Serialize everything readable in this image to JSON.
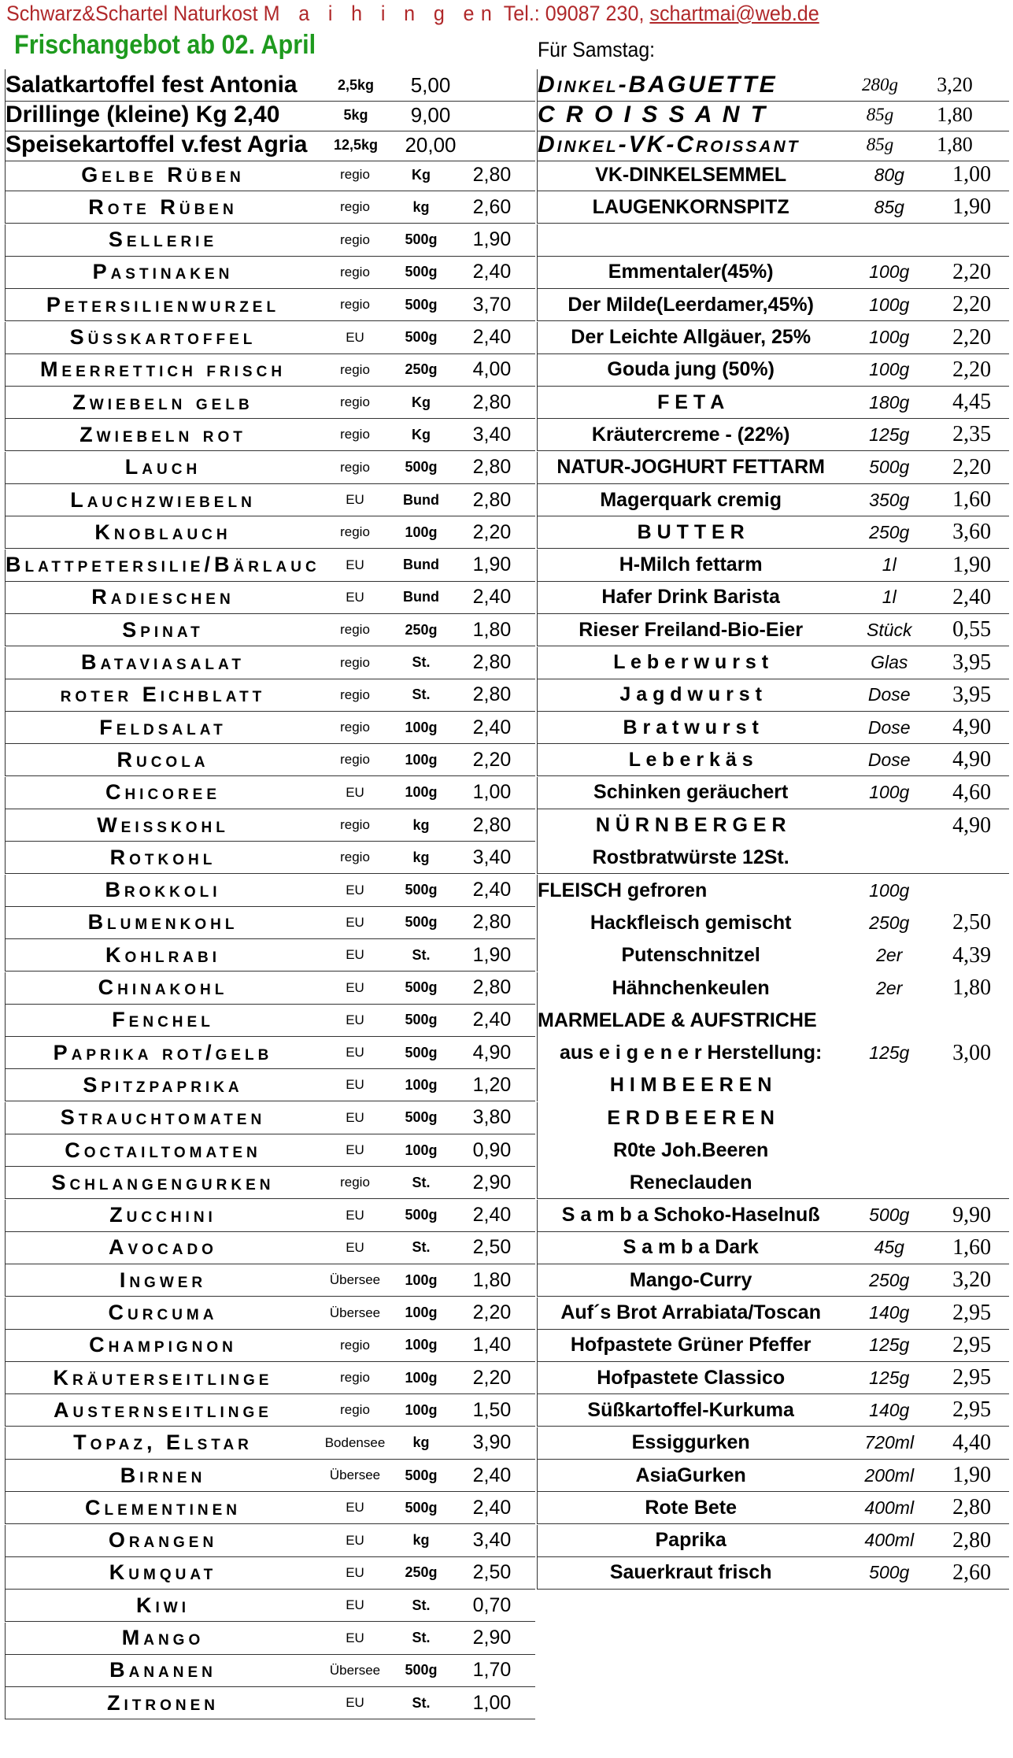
{
  "header": {
    "shop": "Schwarz&Schartel Naturkost",
    "town": "M a i h i n g en",
    "phone": "Tel.: 09087 230,",
    "email": "schartmai@web.de"
  },
  "title": "Frischangebot ab 02. April",
  "saturday_label": "Für Samstag:",
  "potatoes": [
    {
      "name": "Salatkartoffel fest Antonia",
      "unit": "2,5kg",
      "price": "5,00"
    },
    {
      "name": "Drillinge (kleine)  Kg 2,40",
      "unit": "5kg",
      "price": "9,00"
    },
    {
      "name": "Speisekartoffel v.fest Agria",
      "unit": "12,5kg",
      "price": "20,00"
    }
  ],
  "bakery": [
    {
      "name": "Dinkel-BAGUETTE",
      "unit": "280g",
      "price": "3,20"
    },
    {
      "name": "C R O I S S A N T",
      "unit": "85g",
      "price": "1,80"
    },
    {
      "name": "Dinkel-VK-Croissant",
      "unit": "85g",
      "price": "1,80"
    }
  ],
  "produce": [
    {
      "name": "Gelbe Rüben",
      "origin": "regio",
      "unit": "Kg",
      "price": "2,80"
    },
    {
      "name": "Rote Rüben",
      "origin": "regio",
      "unit": "kg",
      "price": "2,60"
    },
    {
      "name": "Sellerie",
      "origin": "regio",
      "unit": "500g",
      "price": "1,90"
    },
    {
      "name": "Pastinaken",
      "origin": "regio",
      "unit": "500g",
      "price": "2,40"
    },
    {
      "name": "Petersilienwurzel",
      "origin": "regio",
      "unit": "500g",
      "price": "3,70"
    },
    {
      "name": "Süsskartoffel",
      "origin": "EU",
      "unit": "500g",
      "price": "2,40"
    },
    {
      "name": "Meerrettich frisch",
      "origin": "regio",
      "unit": "250g",
      "price": "4,00"
    },
    {
      "name": "Zwiebeln gelb",
      "origin": "regio",
      "unit": "Kg",
      "price": "2,80"
    },
    {
      "name": "Zwiebeln  rot",
      "origin": "regio",
      "unit": "Kg",
      "price": "3,40"
    },
    {
      "name": "Lauch",
      "origin": "regio",
      "unit": "500g",
      "price": "2,80"
    },
    {
      "name": "Lauchzwiebeln",
      "origin": "EU",
      "unit": "Bund",
      "price": "2,80"
    },
    {
      "name": "Knoblauch",
      "origin": "regio",
      "unit": "100g",
      "price": "2,20"
    },
    {
      "name": "Blattpetersilie/Bärlauch",
      "origin": "EU",
      "unit": "Bund",
      "price": "1,90"
    },
    {
      "name": "Radieschen",
      "origin": "EU",
      "unit": "Bund",
      "price": "2,40"
    },
    {
      "name": "Spinat",
      "origin": "regio",
      "unit": "250g",
      "price": "1,80"
    },
    {
      "name": "Bataviasalat",
      "origin": "regio",
      "unit": "St.",
      "price": "2,80"
    },
    {
      "name": "roter Eichblatt",
      "origin": "regio",
      "unit": "St.",
      "price": "2,80"
    },
    {
      "name": "Feldsalat",
      "origin": "regio",
      "unit": "100g",
      "price": "2,40"
    },
    {
      "name": "Rucola",
      "origin": "regio",
      "unit": "100g",
      "price": "2,20"
    },
    {
      "name": "Chicoree",
      "origin": "EU",
      "unit": "100g",
      "price": "1,00"
    },
    {
      "name": "Weisskohl",
      "origin": "regio",
      "unit": "kg",
      "price": "2,80"
    },
    {
      "name": "Rotkohl",
      "origin": "regio",
      "unit": "kg",
      "price": "3,40"
    },
    {
      "name": "Brokkoli",
      "origin": "EU",
      "unit": "500g",
      "price": "2,40"
    },
    {
      "name": "Blumenkohl",
      "origin": "EU",
      "unit": "500g",
      "price": "2,80"
    },
    {
      "name": "Kohlrabi",
      "origin": "EU",
      "unit": "St.",
      "price": "1,90"
    },
    {
      "name": "Chinakohl",
      "origin": "EU",
      "unit": "500g",
      "price": "2,80"
    },
    {
      "name": "Fenchel",
      "origin": "EU",
      "unit": "500g",
      "price": "2,40"
    },
    {
      "name": "Paprika rot/gelb",
      "origin": "EU",
      "unit": "500g",
      "price": "4,90"
    },
    {
      "name": "Spitzpaprika",
      "origin": "EU",
      "unit": "100g",
      "price": "1,20"
    },
    {
      "name": "Strauchtomaten",
      "origin": "EU",
      "unit": "500g",
      "price": "3,80"
    },
    {
      "name": "Coctailtomaten",
      "origin": "EU",
      "unit": "100g",
      "price": "0,90"
    },
    {
      "name": "Schlangengurken",
      "origin": "regio",
      "unit": "St.",
      "price": "2,90"
    },
    {
      "name": "Zucchini",
      "origin": "EU",
      "unit": "500g",
      "price": "2,40"
    },
    {
      "name": "Avocado",
      "origin": "EU",
      "unit": "St.",
      "price": "2,50"
    },
    {
      "name": "Ingwer",
      "origin": "Übersee",
      "unit": "100g",
      "price": "1,80"
    },
    {
      "name": "Curcuma",
      "origin": "Übersee",
      "unit": "100g",
      "price": "2,20"
    },
    {
      "name": "Champignon",
      "origin": "regio",
      "unit": "100g",
      "price": "1,40"
    },
    {
      "name": "Kräuterseitlinge",
      "origin": "regio",
      "unit": "100g",
      "price": "2,20"
    },
    {
      "name": "Austernseitlinge",
      "origin": "regio",
      "unit": "100g",
      "price": "1,50"
    },
    {
      "name": "Topaz, Elstar",
      "origin": "Bodensee",
      "unit": "kg",
      "price": "3,90"
    },
    {
      "name": "Birnen",
      "origin": "Übersee",
      "unit": "500g",
      "price": "2,40"
    },
    {
      "name": "Clementinen",
      "origin": "EU",
      "unit": "500g",
      "price": "2,40"
    },
    {
      "name": "Orangen",
      "origin": "EU",
      "unit": "kg",
      "price": "3,40"
    },
    {
      "name": "Kumquat",
      "origin": "EU",
      "unit": "250g",
      "price": "2,50"
    },
    {
      "name": "Kiwi",
      "origin": "EU",
      "unit": "St.",
      "price": "0,70"
    },
    {
      "name": "Mango",
      "origin": "EU",
      "unit": "St.",
      "price": "2,90"
    },
    {
      "name": "Bananen",
      "origin": "Übersee",
      "unit": "500g",
      "price": "1,70"
    },
    {
      "name": "Zitronen",
      "origin": "EU",
      "unit": "St.",
      "price": "1,00"
    }
  ],
  "saturday_items": [
    {
      "name": "VK-DINKELSEMMEL",
      "unit": "80g",
      "price": "1,00"
    },
    {
      "name": "LAUGENKORNSPITZ",
      "unit": "85g",
      "price": "1,90"
    },
    {
      "name": "",
      "unit": "",
      "price": ""
    },
    {
      "name": "Emmentaler(45%)",
      "unit": "100g",
      "price": "2,20"
    },
    {
      "name": "Der Milde(Leerdamer,45%)",
      "unit": "100g",
      "price": "2,20"
    },
    {
      "name": "Der Leichte Allgäuer,  25%",
      "unit": "100g",
      "price": "2,20"
    },
    {
      "name": "Gouda jung (50%)",
      "unit": "100g",
      "price": "2,20"
    },
    {
      "name": "F E T A",
      "unit": "180g",
      "price": "4,45"
    },
    {
      "name": "Kräutercreme - (22%)",
      "unit": "125g",
      "price": "2,35"
    },
    {
      "name": "NATUR-JOGHURT FETTARM",
      "unit": "500g",
      "price": "2,20"
    },
    {
      "name": "Magerquark cremig",
      "unit": "350g",
      "price": "1,60"
    },
    {
      "name": "B U T T E R",
      "unit": "250g",
      "price": "3,60"
    },
    {
      "name": "H-Milch fettarm",
      "unit": "1l",
      "price": "1,90"
    },
    {
      "name": "Hafer Drink Barista",
      "unit": "1l",
      "price": "2,40"
    },
    {
      "name": "Rieser Freiland-Bio-Eier",
      "unit": "Stück",
      "price": "0,55"
    },
    {
      "name": "L e b e r w u r s t",
      "unit": "Glas",
      "price": "3,95"
    },
    {
      "name": "J a g d w u r s t",
      "unit": "Dose",
      "price": "3,95"
    },
    {
      "name": "B r a t w u r s t",
      "unit": "Dose",
      "price": "4,90"
    },
    {
      "name": "L e b e r k ä s",
      "unit": "Dose",
      "price": "4,90"
    },
    {
      "name": "Schinken geräuchert",
      "unit": "100g",
      "price": "4,60"
    },
    {
      "name": "N Ü R N B E R G E R",
      "unit": "",
      "price": "4,90"
    },
    {
      "name": "Rostbratwürste 12St.",
      "unit": "",
      "price": ""
    },
    {
      "name": "FLEISCH gefroren",
      "unit": "100g",
      "price": ""
    },
    {
      "name": "Hackfleisch gemischt",
      "unit": "250g",
      "price": "2,50"
    },
    {
      "name": "Putenschnitzel",
      "unit": "2er",
      "price": "4,39"
    },
    {
      "name": "Hähnchenkeulen",
      "unit": "2er",
      "price": "1,80"
    },
    {
      "name": "MARMELADE & AUFSTRICHE",
      "unit": "",
      "price": ""
    },
    {
      "name": "aus e i g e n e r  Herstellung:",
      "unit": "125g",
      "price": "3,00"
    },
    {
      "name": "H I M B E E R E N",
      "unit": "",
      "price": ""
    },
    {
      "name": "E R D B E E R E N",
      "unit": "",
      "price": ""
    },
    {
      "name": "R0te Joh.Beeren",
      "unit": "",
      "price": ""
    },
    {
      "name": "Reneclauden",
      "unit": "",
      "price": ""
    },
    {
      "name": "S a m b a  Schoko-Haselnuß",
      "unit": "500g",
      "price": "9,90"
    },
    {
      "name": "S a m b a  Dark",
      "unit": "45g",
      "price": "1,60"
    },
    {
      "name": "Mango-Curry",
      "unit": "250g",
      "price": "3,20"
    },
    {
      "name": "Auf´s Brot Arrabiata/Toscan",
      "unit": "140g",
      "price": "2,95"
    },
    {
      "name": "Hofpastete Grüner Pfeffer",
      "unit": "125g",
      "price": "2,95"
    },
    {
      "name": "Hofpastete Classico",
      "unit": "125g",
      "price": "2,95"
    },
    {
      "name": "Süßkartoffel-Kurkuma",
      "unit": "140g",
      "price": "2,95"
    },
    {
      "name": "Essiggurken",
      "unit": "720ml",
      "price": "4,40"
    },
    {
      "name": "AsiaGurken",
      "unit": "200ml",
      "price": "1,90"
    },
    {
      "name": "Rote Bete",
      "unit": "400ml",
      "price": "2,80"
    },
    {
      "name": "Paprika",
      "unit": "400ml",
      "price": "2,80"
    },
    {
      "name": "Sauerkraut frisch",
      "unit": "500g",
      "price": "2,60"
    }
  ]
}
